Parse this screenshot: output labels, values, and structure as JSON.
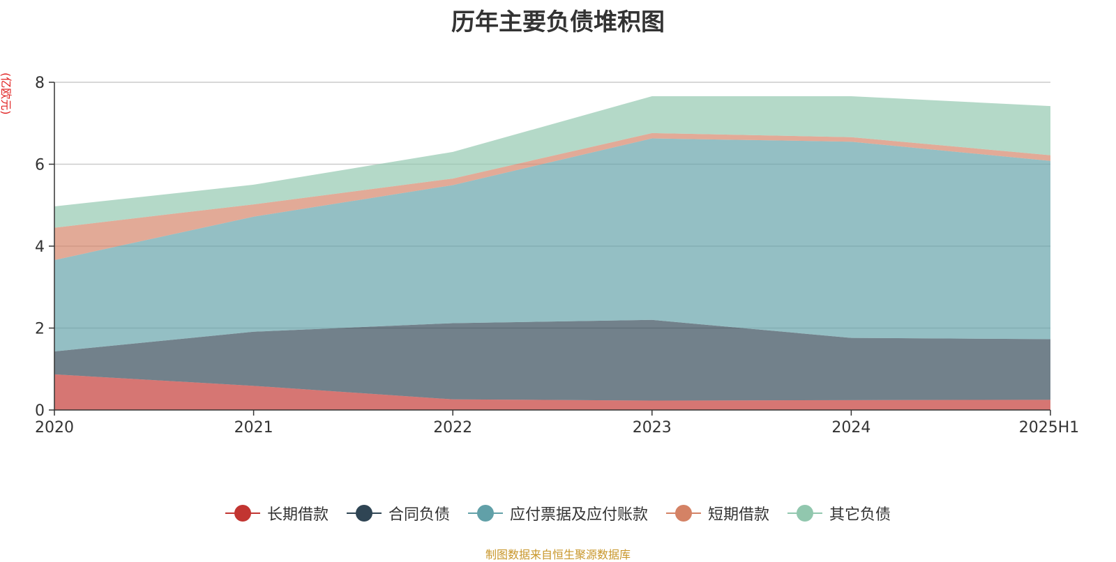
{
  "chart_data": {
    "type": "area",
    "stacked": true,
    "title": "历年主要负债堆积图",
    "unit": "(亿欧元)",
    "categories": [
      "2020",
      "2021",
      "2022",
      "2023",
      "2024",
      "2025H1"
    ],
    "ylim": [
      0,
      8
    ],
    "yticks": [
      0,
      2,
      4,
      6,
      8
    ],
    "grid": true,
    "legend_position": "bottom",
    "series": [
      {
        "name": "长期借款",
        "color": "#c23531",
        "values": [
          0.87,
          0.59,
          0.26,
          0.23,
          0.24,
          0.25
        ]
      },
      {
        "name": "合同负债",
        "color": "#2f4554",
        "values": [
          0.56,
          1.32,
          1.86,
          1.97,
          1.52,
          1.48
        ]
      },
      {
        "name": "应付票据及应付账款",
        "color": "#61a0a8",
        "values": [
          2.23,
          2.81,
          3.37,
          4.43,
          4.79,
          4.35
        ]
      },
      {
        "name": "短期借款",
        "color": "#d48265",
        "values": [
          0.79,
          0.3,
          0.16,
          0.13,
          0.11,
          0.14
        ]
      },
      {
        "name": "其它负债",
        "color": "#91c7ae",
        "values": [
          0.52,
          0.48,
          0.65,
          0.9,
          1.0,
          1.2
        ]
      }
    ]
  },
  "footer": {
    "source": "制图数据来自恒生聚源数据库"
  }
}
